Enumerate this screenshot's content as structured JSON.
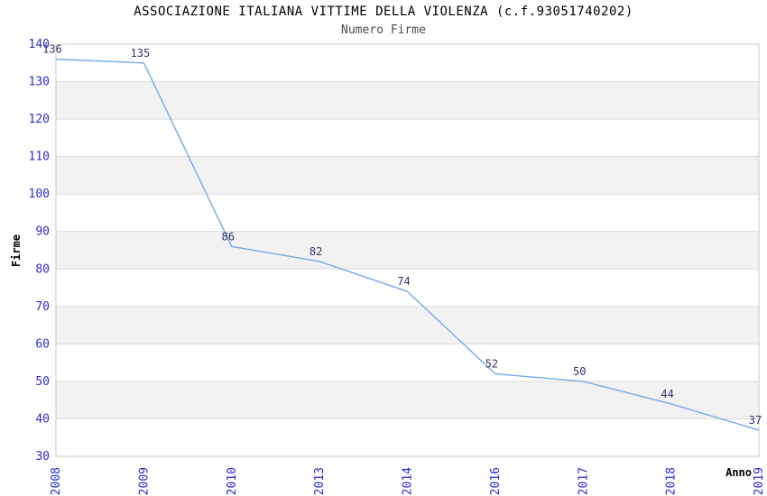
{
  "chart_data": {
    "type": "line",
    "title": "ASSOCIAZIONE ITALIANA VITTIME DELLA VIOLENZA (c.f.93051740202)",
    "subtitle": "Numero Firme",
    "categories": [
      "2008",
      "2009",
      "2010",
      "2013",
      "2014",
      "2016",
      "2017",
      "2018",
      "2019"
    ],
    "series": [
      {
        "name": "Numero Firme",
        "values": [
          136,
          135,
          86,
          82,
          74,
          52,
          50,
          44,
          37
        ]
      }
    ],
    "xlabel": "Anno",
    "ylabel": "Firme",
    "ylim": [
      30,
      140
    ],
    "ytick_step": 10,
    "grid": "horizontal gridlines with alternating shaded bands",
    "legend": "none",
    "colors": {
      "line": "#79a7ec",
      "tick_label": "#2d2dcc",
      "data_label": "#333366",
      "band_fill": "#f2f2f2",
      "grid_line": "#dcdcdc",
      "plot_border": "#c8c8c8",
      "title_text": "#000000",
      "subtitle_text": "#4d4d4d",
      "axis_title_text": "#000000"
    }
  }
}
